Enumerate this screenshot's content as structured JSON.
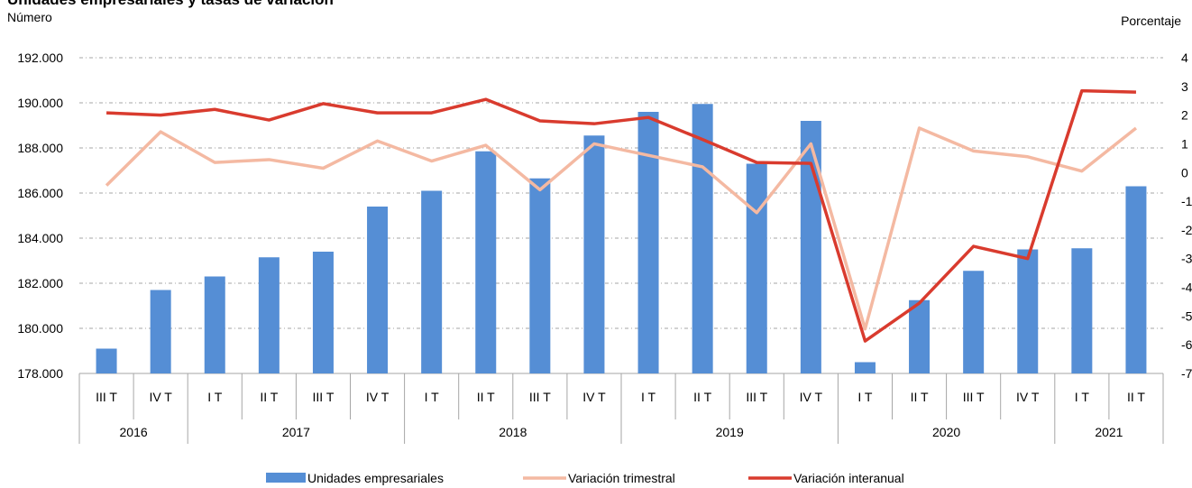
{
  "chart_data": {
    "type": "bar_line",
    "title": "Unidades empresariales y tasas de variación",
    "y_label": "Número",
    "y2_label": "Porcentaje",
    "categories": [
      "III T",
      "IV T",
      "I T",
      "II T",
      "III T",
      "IV T",
      "I T",
      "II T",
      "III T",
      "IV T",
      "I T",
      "II T",
      "III T",
      "IV T",
      "I T",
      "II T",
      "III T",
      "IV T",
      "I T",
      "II T"
    ],
    "year_groups": [
      {
        "label": "2016",
        "span": 2
      },
      {
        "label": "2017",
        "span": 4
      },
      {
        "label": "2018",
        "span": 4
      },
      {
        "label": "2019",
        "span": 4
      },
      {
        "label": "2020",
        "span": 4
      },
      {
        "label": "2021",
        "span": 2
      }
    ],
    "series": [
      {
        "name": "Unidades empresariales",
        "type": "bar",
        "color": "#558ed5",
        "values": [
          179100,
          181700,
          182300,
          183150,
          183400,
          185400,
          186100,
          187850,
          186650,
          188550,
          189600,
          189950,
          187300,
          189200,
          178500,
          181250,
          182550,
          183500,
          183550,
          186300
        ]
      },
      {
        "name": "Variación trimestral",
        "type": "line",
        "axis": "y2",
        "color": "#f4b9a2",
        "values": [
          -0.45,
          1.42,
          0.35,
          0.45,
          0.15,
          1.1,
          0.4,
          0.95,
          -0.6,
          1.0,
          0.6,
          0.2,
          -1.4,
          1.0,
          -5.45,
          1.55,
          0.75,
          0.55,
          0.05,
          1.55
        ]
      },
      {
        "name": "Variación interanual",
        "type": "line",
        "axis": "y2",
        "color": "#d93b2e",
        "values": [
          2.08,
          2.0,
          2.2,
          1.83,
          2.4,
          2.08,
          2.08,
          2.55,
          1.8,
          1.7,
          1.92,
          1.15,
          0.35,
          0.32,
          -5.87,
          -4.55,
          -2.57,
          -3.0,
          2.85,
          2.8
        ]
      }
    ],
    "ylim": [
      178000,
      192000
    ],
    "yticks": [
      {
        "value": 178000,
        "label": "178.000"
      },
      {
        "value": 180000,
        "label": "180.000"
      },
      {
        "value": 182000,
        "label": "182.000"
      },
      {
        "value": 184000,
        "label": "184.000"
      },
      {
        "value": 186000,
        "label": "186.000"
      },
      {
        "value": 188000,
        "label": "188.000"
      },
      {
        "value": 190000,
        "label": "190.000"
      },
      {
        "value": 192000,
        "label": "192.000"
      }
    ],
    "y2lim": [
      -7,
      4
    ],
    "y2ticks": [
      -7,
      -6,
      -5,
      -4,
      -3,
      -2,
      -1,
      0,
      1,
      2,
      3,
      4
    ],
    "grid": true,
    "legend": "bottom"
  }
}
